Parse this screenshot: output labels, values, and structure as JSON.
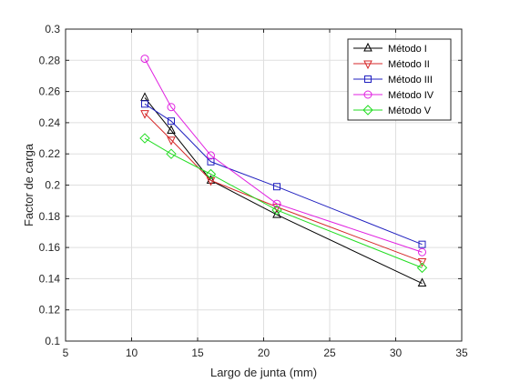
{
  "chart_data": {
    "type": "line",
    "title": "",
    "xlabel": "Largo de junta (mm)",
    "ylabel": "Factor de carga",
    "xlim": [
      5,
      35
    ],
    "ylim": [
      0.1,
      0.3
    ],
    "xticks": [
      5,
      10,
      15,
      20,
      25,
      30,
      35
    ],
    "yticks": [
      0.1,
      0.12,
      0.14,
      0.16,
      0.18,
      0.2,
      0.22,
      0.24,
      0.26,
      0.28,
      0.3
    ],
    "grid": true,
    "legend_position": "top-right",
    "x": [
      11,
      13,
      16,
      21,
      32
    ],
    "series": [
      {
        "name": "Método I",
        "color": "#000000",
        "marker": "triangle-up",
        "values": [
          0.256,
          0.235,
          0.203,
          0.181,
          0.137
        ]
      },
      {
        "name": "Método II",
        "color": "#d62728",
        "marker": "triangle-down",
        "values": [
          0.246,
          0.229,
          0.203,
          0.186,
          0.151
        ]
      },
      {
        "name": "Método III",
        "color": "#1f1fbf",
        "marker": "square",
        "values": [
          0.252,
          0.241,
          0.215,
          0.199,
          0.162
        ]
      },
      {
        "name": "Método IV",
        "color": "#e020e0",
        "marker": "circle",
        "values": [
          0.281,
          0.25,
          0.219,
          0.188,
          0.157
        ]
      },
      {
        "name": "Método V",
        "color": "#22dd22",
        "marker": "diamond",
        "values": [
          0.23,
          0.22,
          0.207,
          0.184,
          0.147
        ]
      }
    ]
  }
}
